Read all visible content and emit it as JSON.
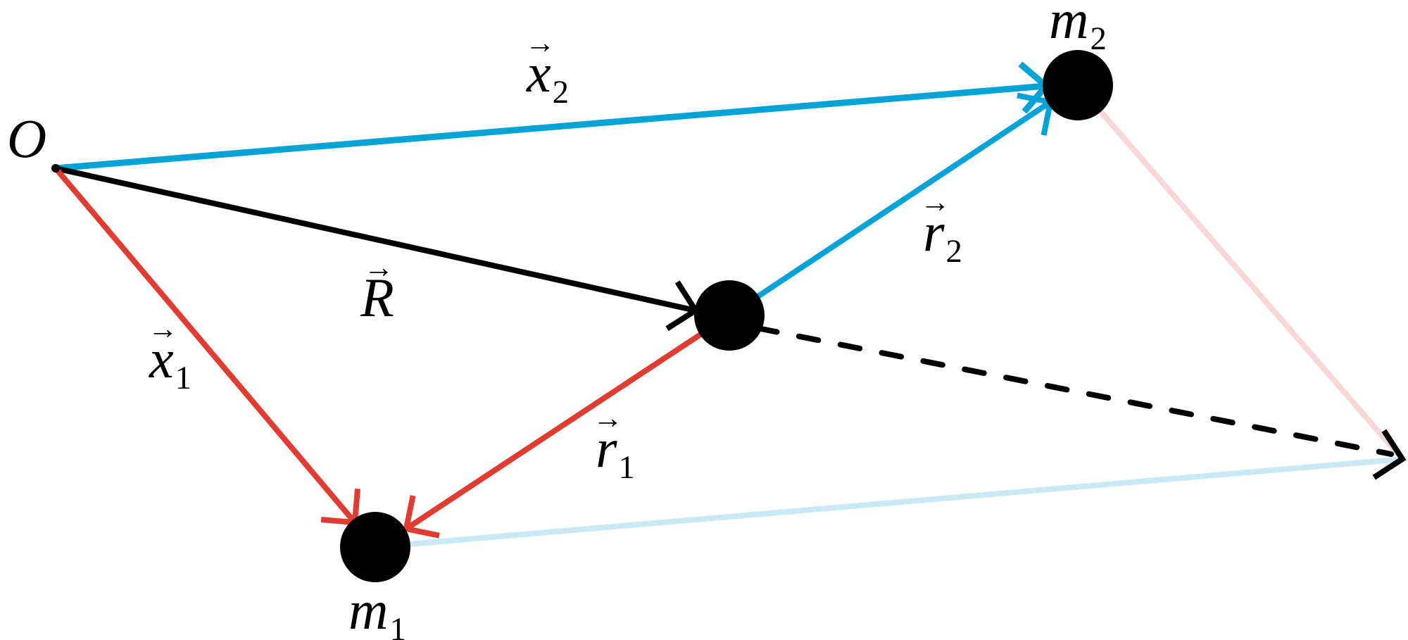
{
  "colors": {
    "blue": "#00a3d6",
    "red": "#e03c31",
    "black": "#000000",
    "faint_blue": "#c9eaf5",
    "faint_red": "#f8d7d5"
  },
  "labels": {
    "origin": "O",
    "x2": {
      "base": "x",
      "sub": "2"
    },
    "x1": {
      "base": "x",
      "sub": "1"
    },
    "R": {
      "base": "R",
      "sub": ""
    },
    "r1": {
      "base": "r",
      "sub": "1"
    },
    "r2": {
      "base": "r",
      "sub": "2"
    },
    "m1": {
      "base": "m",
      "sub": "1"
    },
    "m2": {
      "base": "m",
      "sub": "2"
    }
  }
}
